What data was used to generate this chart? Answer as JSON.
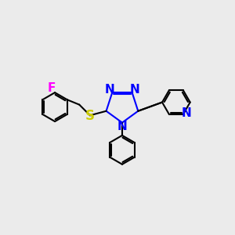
{
  "bg_color": "#ebebeb",
  "bond_color": "#000000",
  "triazole_N_color": "#0000ff",
  "S_color": "#cccc00",
  "F_color": "#ff00ff",
  "pyridine_N_color": "#0000ff",
  "line_width": 1.5,
  "font_size": 10,
  "figsize": [
    3.0,
    3.0
  ],
  "dpi": 100,
  "xlim": [
    0,
    10
  ],
  "ylim": [
    0,
    10
  ]
}
